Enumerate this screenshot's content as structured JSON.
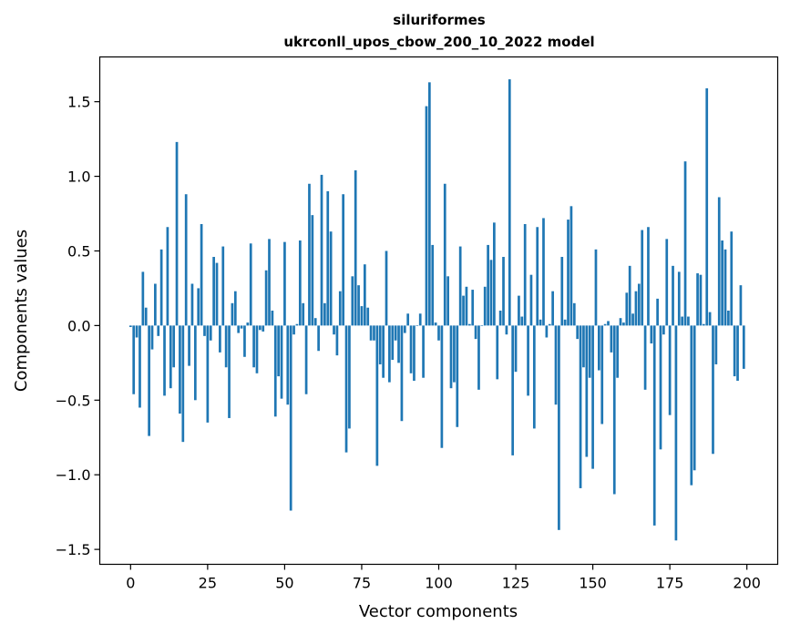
{
  "chart_data": {
    "type": "bar",
    "title": "siluriformes",
    "subtitle": "ukrconll_upos_cbow_200_10_2022 model",
    "xlabel": "Vector components",
    "ylabel": "Components values",
    "xlim": [
      -10,
      210
    ],
    "ylim": [
      -1.6,
      1.8
    ],
    "xticks": [
      0,
      25,
      50,
      75,
      100,
      125,
      150,
      175,
      200
    ],
    "xtick_labels": [
      "0",
      "25",
      "50",
      "75",
      "100",
      "125",
      "150",
      "175",
      "200"
    ],
    "yticks": [
      -1.5,
      -1.0,
      -0.5,
      0.0,
      0.5,
      1.0,
      1.5
    ],
    "ytick_labels": [
      "−1.5",
      "−1.0",
      "−0.5",
      "0.0",
      "0.5",
      "1.0",
      "1.5"
    ],
    "bar_color": "#1f77b4",
    "grid": false,
    "legend": "none",
    "x": [
      0,
      1,
      2,
      3,
      4,
      5,
      6,
      7,
      8,
      9,
      10,
      11,
      12,
      13,
      14,
      15,
      16,
      17,
      18,
      19,
      20,
      21,
      22,
      23,
      24,
      25,
      26,
      27,
      28,
      29,
      30,
      31,
      32,
      33,
      34,
      35,
      36,
      37,
      38,
      39,
      40,
      41,
      42,
      43,
      44,
      45,
      46,
      47,
      48,
      49,
      50,
      51,
      52,
      53,
      54,
      55,
      56,
      57,
      58,
      59,
      60,
      61,
      62,
      63,
      64,
      65,
      66,
      67,
      68,
      69,
      70,
      71,
      72,
      73,
      74,
      75,
      76,
      77,
      78,
      79,
      80,
      81,
      82,
      83,
      84,
      85,
      86,
      87,
      88,
      89,
      90,
      91,
      92,
      93,
      94,
      95,
      96,
      97,
      98,
      99,
      100,
      101,
      102,
      103,
      104,
      105,
      106,
      107,
      108,
      109,
      110,
      111,
      112,
      113,
      114,
      115,
      116,
      117,
      118,
      119,
      120,
      121,
      122,
      123,
      124,
      125,
      126,
      127,
      128,
      129,
      130,
      131,
      132,
      133,
      134,
      135,
      136,
      137,
      138,
      139,
      140,
      141,
      142,
      143,
      144,
      145,
      146,
      147,
      148,
      149,
      150,
      151,
      152,
      153,
      154,
      155,
      156,
      157,
      158,
      159,
      160,
      161,
      162,
      163,
      164,
      165,
      166,
      167,
      168,
      169,
      170,
      171,
      172,
      173,
      174,
      175,
      176,
      177,
      178,
      179,
      180,
      181,
      182,
      183,
      184,
      185,
      186,
      187,
      188,
      189,
      190,
      191,
      192,
      193,
      194,
      195,
      196,
      197,
      198,
      199
    ],
    "values": [
      -0.01,
      -0.46,
      -0.08,
      -0.55,
      0.36,
      0.12,
      -0.74,
      -0.16,
      0.28,
      -0.07,
      0.51,
      -0.47,
      0.66,
      -0.42,
      -0.28,
      1.23,
      -0.59,
      -0.78,
      0.88,
      -0.27,
      0.28,
      -0.5,
      0.25,
      0.68,
      -0.07,
      -0.65,
      -0.1,
      0.46,
      0.42,
      -0.18,
      0.53,
      -0.28,
      -0.62,
      0.15,
      0.23,
      -0.05,
      -0.02,
      -0.21,
      0.02,
      0.55,
      -0.28,
      -0.32,
      -0.03,
      -0.04,
      0.37,
      0.58,
      0.1,
      -0.61,
      -0.34,
      -0.49,
      0.56,
      -0.53,
      -1.24,
      -0.06,
      0.01,
      0.57,
      0.15,
      -0.46,
      0.95,
      0.74,
      0.05,
      -0.17,
      1.01,
      0.15,
      0.9,
      0.63,
      -0.06,
      -0.2,
      0.23,
      0.88,
      -0.85,
      -0.69,
      0.33,
      1.04,
      0.27,
      0.13,
      0.41,
      0.12,
      -0.1,
      -0.1,
      -0.94,
      -0.26,
      -0.35,
      0.5,
      -0.38,
      -0.23,
      -0.1,
      -0.25,
      -0.64,
      -0.05,
      0.08,
      -0.32,
      -0.37,
      0.0,
      0.08,
      -0.35,
      1.47,
      1.63,
      0.54,
      0.02,
      -0.1,
      -0.82,
      0.95,
      0.33,
      -0.42,
      -0.38,
      -0.68,
      0.53,
      0.2,
      0.26,
      0.01,
      0.24,
      -0.09,
      -0.43,
      0.0,
      0.26,
      0.54,
      0.44,
      0.69,
      -0.36,
      0.1,
      0.46,
      -0.06,
      1.65,
      -0.87,
      -0.31,
      0.2,
      0.06,
      0.68,
      -0.47,
      0.34,
      -0.69,
      0.66,
      0.04,
      0.72,
      -0.08,
      0.01,
      0.23,
      -0.53,
      -1.37,
      0.46,
      0.04,
      0.71,
      0.8,
      0.15,
      -0.09,
      -1.09,
      -0.28,
      -0.88,
      -0.35,
      -0.96,
      0.51,
      -0.3,
      -0.66,
      0.01,
      0.03,
      -0.18,
      -1.13,
      -0.35,
      0.05,
      0.02,
      0.22,
      0.4,
      0.08,
      0.23,
      0.28,
      0.64,
      -0.43,
      0.66,
      -0.12,
      -1.34,
      0.18,
      -0.83,
      -0.06,
      0.58,
      -0.6,
      0.4,
      -1.44,
      0.36,
      0.06,
      1.1,
      0.06,
      -1.07,
      -0.97,
      0.35,
      0.34,
      0.01,
      1.59,
      0.09,
      -0.86,
      -0.26,
      0.86,
      0.57,
      0.51,
      0.1,
      0.63,
      -0.34,
      -0.37,
      0.27,
      -0.29
    ]
  }
}
